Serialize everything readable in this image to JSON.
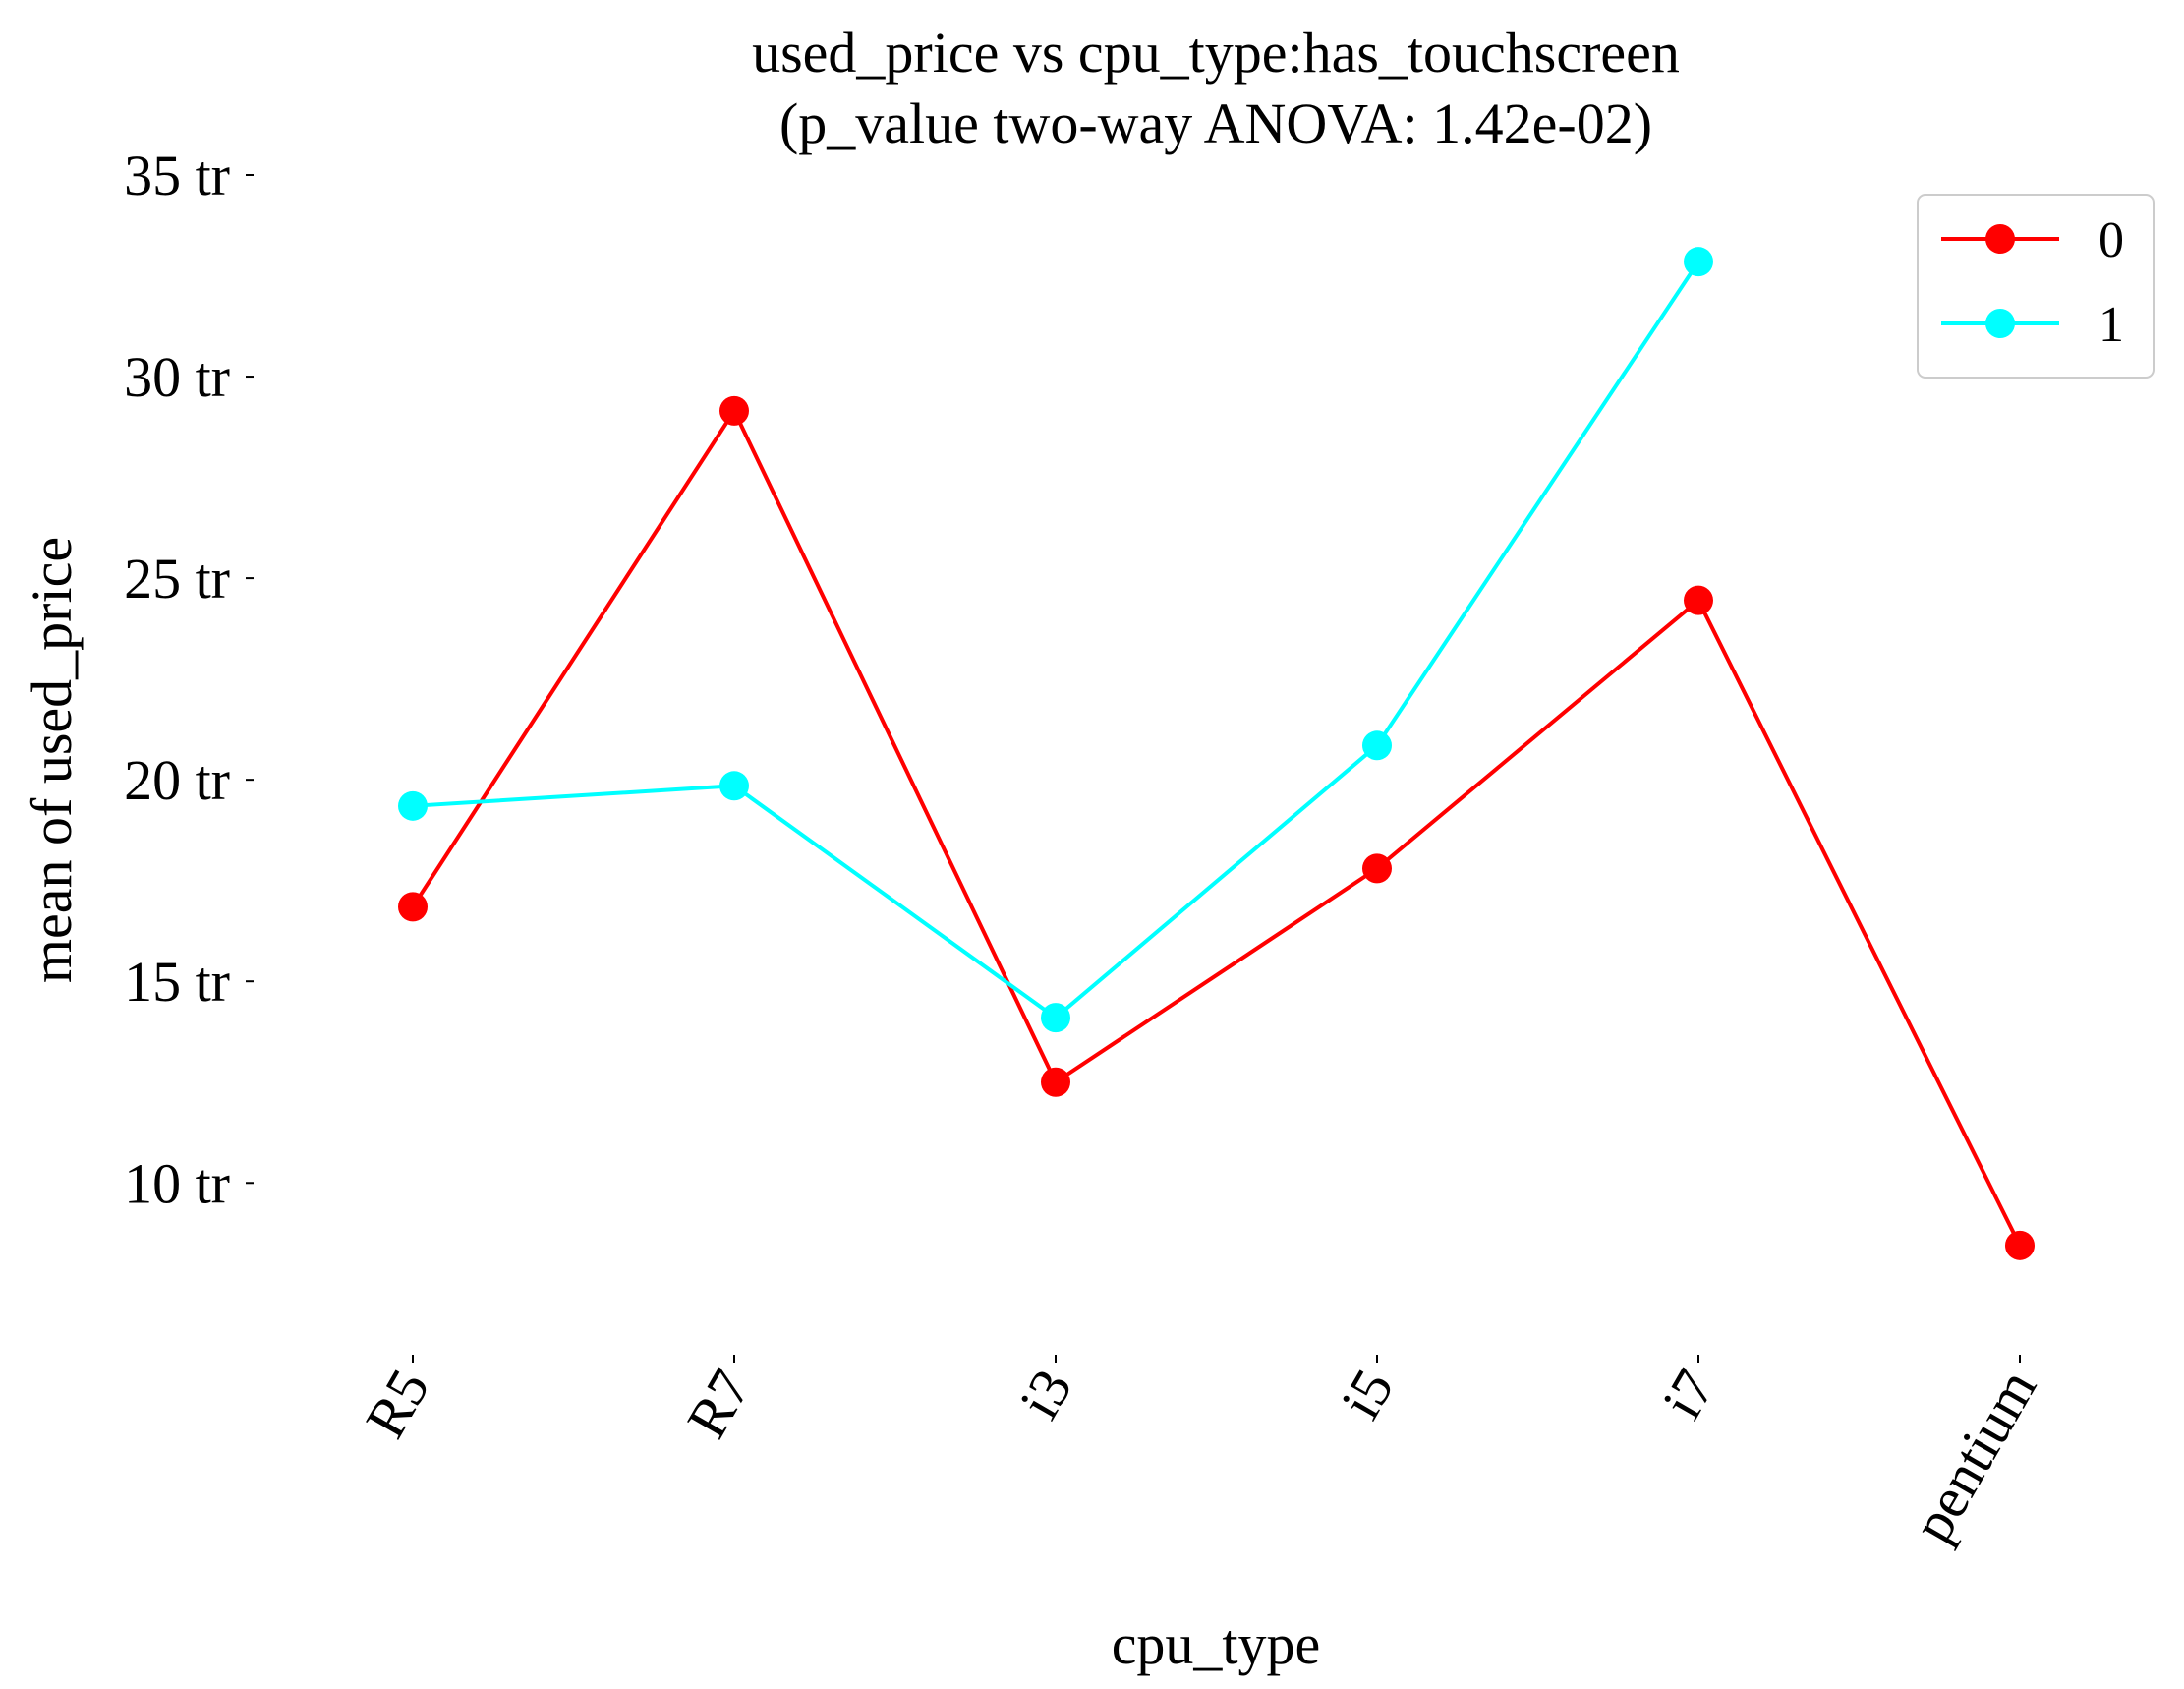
{
  "chart_data": {
    "type": "line",
    "title": "used_price vs cpu_type:has_touchscreen",
    "subtitle": "(p_value two-way ANOVA: 1.42e-02)",
    "xlabel": "cpu_type",
    "ylabel": "mean of used_price",
    "categories": [
      "R5",
      "R7",
      "i3",
      "i5",
      "i7",
      "pentium"
    ],
    "y_ticks": [
      {
        "value": 10,
        "label": "10 tr"
      },
      {
        "value": 15,
        "label": "15 tr"
      },
      {
        "value": 20,
        "label": "20 tr"
      },
      {
        "value": 25,
        "label": "25 tr"
      },
      {
        "value": 30,
        "label": "30 tr"
      },
      {
        "value": 35,
        "label": "35 tr"
      }
    ],
    "ylim": [
      6.3,
      35
    ],
    "grid": false,
    "legend_position": "top-right",
    "series": [
      {
        "name": "0",
        "color": "#ff0000",
        "values": [
          16.85,
          29.15,
          12.5,
          17.8,
          24.45,
          8.45
        ]
      },
      {
        "name": "1",
        "color": "#00ffff",
        "values": [
          19.35,
          19.85,
          14.1,
          20.85,
          32.85,
          null
        ]
      }
    ]
  }
}
